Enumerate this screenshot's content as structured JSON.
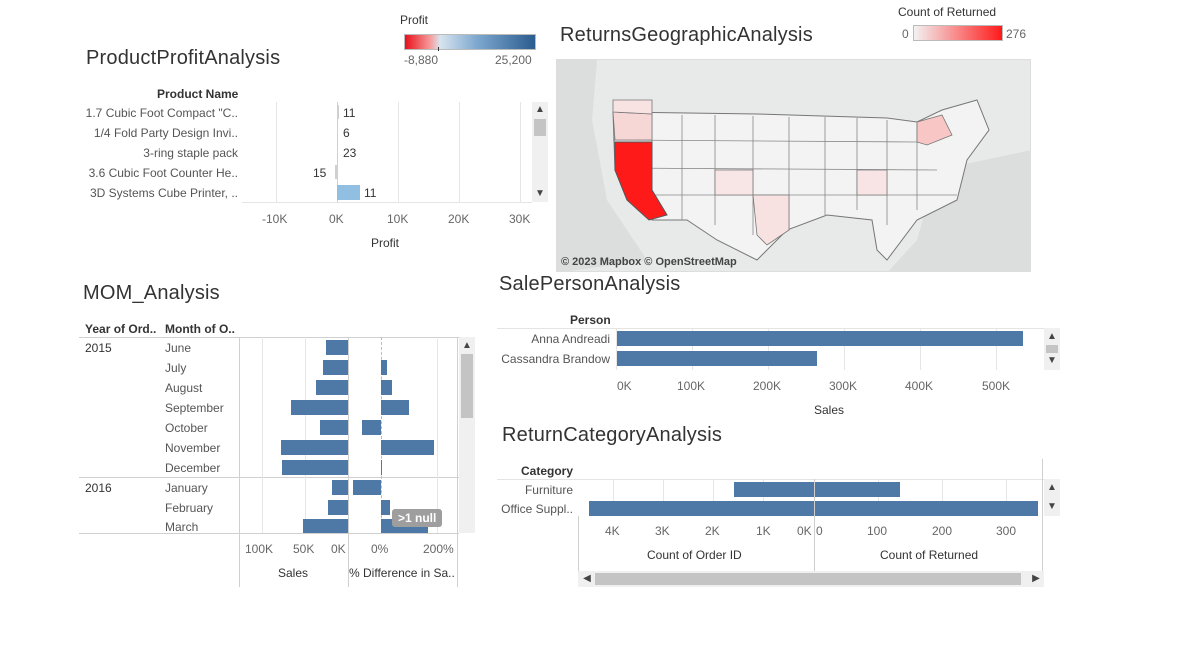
{
  "profit_legend": {
    "title": "Profit",
    "min": "-8,880",
    "max": "25,200"
  },
  "returned_legend": {
    "title": "Count of Returned",
    "min": "0",
    "max": "276"
  },
  "product_profit": {
    "title": "ProductProfitAnalysis",
    "header": "Product Name",
    "axis_title": "Profit",
    "ticks": [
      "-10K",
      "0K",
      "10K",
      "20K",
      "30K"
    ],
    "rows": [
      {
        "label": "1.7 Cubic Foot Compact \"C..",
        "value_label": "11"
      },
      {
        "label": "1/4 Fold Party Design Invi..",
        "value_label": "6"
      },
      {
        "label": "3-ring staple pack",
        "value_label": "23"
      },
      {
        "label": "3.6 Cubic Foot Counter He..",
        "value_label": "15"
      },
      {
        "label": "3D Systems Cube Printer, ..",
        "value_label": "11"
      }
    ]
  },
  "returns_geo": {
    "title": "ReturnsGeographicAnalysis",
    "attribution": "© 2023 Mapbox © OpenStreetMap"
  },
  "mom": {
    "title": "MOM_Analysis",
    "header_year": "Year of Ord..",
    "header_month": "Month of O..",
    "years": [
      "2015",
      "2016"
    ],
    "months": [
      "June",
      "July",
      "August",
      "September",
      "October",
      "November",
      "December",
      "January",
      "February",
      "March"
    ],
    "sales_ticks": [
      "100K",
      "50K",
      "0K"
    ],
    "pct_ticks": [
      "0%",
      "200%"
    ],
    "sales_axis": "Sales",
    "pct_axis": "% Difference in Sa..",
    "null_badge": ">1 null"
  },
  "salesperson": {
    "title": "SalePersonAnalysis",
    "header": "Person",
    "people": [
      "Anna Andreadi",
      "Cassandra Brandow"
    ],
    "ticks": [
      "0K",
      "100K",
      "200K",
      "300K",
      "400K",
      "500K"
    ],
    "axis": "Sales"
  },
  "return_category": {
    "title": "ReturnCategoryAnalysis",
    "header": "Category",
    "categories": [
      "Furniture",
      "Office Suppl.."
    ],
    "left_ticks": [
      "4K",
      "3K",
      "2K",
      "1K",
      "0K"
    ],
    "right_ticks": [
      "0",
      "100",
      "200",
      "300"
    ],
    "left_axis": "Count of Order ID",
    "right_axis": "Count of Returned"
  },
  "icons": {
    "scroll_up": "▲",
    "scroll_down": "▼",
    "scroll_left": "◀",
    "scroll_right": "▶"
  },
  "colors": {
    "bar": "#4e79a7",
    "bar_light": "#90bfe2",
    "return_high": "#ff0000"
  }
}
